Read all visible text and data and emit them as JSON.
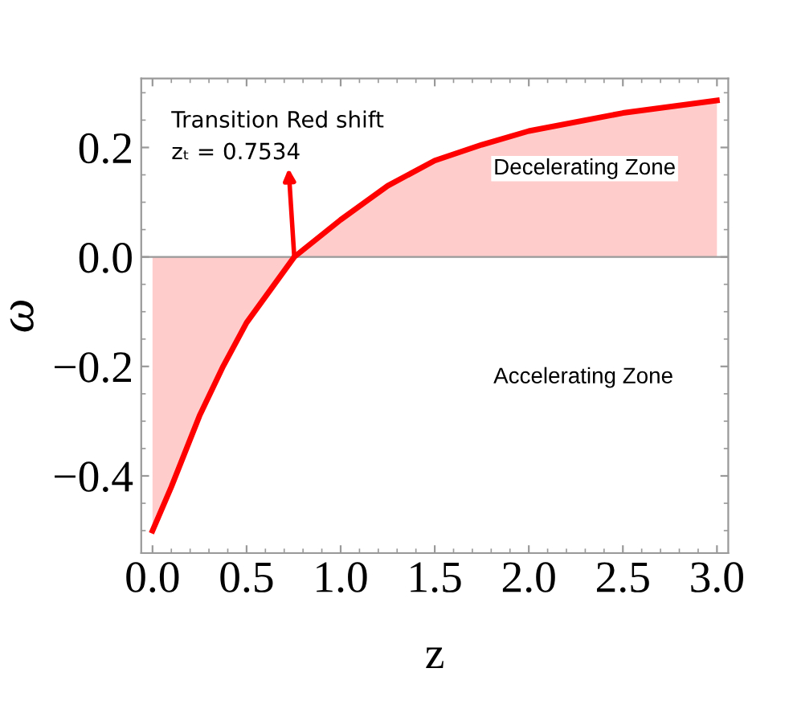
{
  "chart_data": {
    "type": "area",
    "xlabel": "z",
    "ylabel": "ω",
    "x": [
      0,
      0.1,
      0.25,
      0.375,
      0.5,
      0.7534,
      1.0,
      1.25,
      1.5,
      1.75,
      2.0,
      2.5,
      3.0
    ],
    "series": [
      {
        "color": "#ff0000",
        "values": [
          -0.5,
          -0.42,
          -0.29,
          -0.2,
          -0.12,
          0,
          0.068,
          0.13,
          0.176,
          0.205,
          0.23,
          0.263,
          0.286
        ]
      }
    ],
    "xlim": [
      -0.06,
      3.06
    ],
    "ylim": [
      -0.541,
      0.326
    ],
    "xticks": [
      {
        "value": 0,
        "label": "0.0"
      },
      {
        "value": 0.5,
        "label": "0.5"
      },
      {
        "value": 1,
        "label": "1.0"
      },
      {
        "value": 1.5,
        "label": "1.5"
      },
      {
        "value": 2,
        "label": "2.0"
      },
      {
        "value": 2.5,
        "label": "2.5"
      },
      {
        "value": 3,
        "label": "3.0"
      }
    ],
    "yticks": [
      {
        "value": -0.4,
        "label": "−0.4"
      },
      {
        "value": -0.2,
        "label": "−0.2"
      },
      {
        "value": 0,
        "label": "0.0"
      },
      {
        "value": 0.2,
        "label": "0.2"
      }
    ],
    "ref_lines": [
      {
        "axis": "y",
        "value": 0,
        "color": "#999999"
      }
    ],
    "annotations": [
      {
        "text": "Transition Red shift\nzₜ = 0.7534",
        "x": 0.7534,
        "y": 0
      },
      "Decelerating Zone",
      "Accelerating Zone"
    ],
    "grid": false,
    "legend": false
  }
}
